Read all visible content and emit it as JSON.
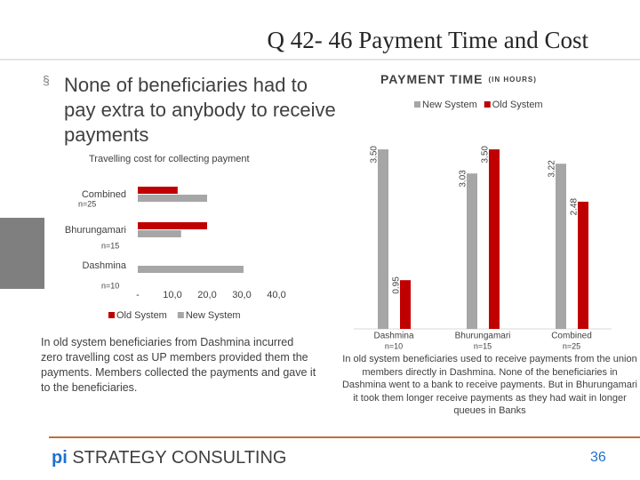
{
  "slide": {
    "title": "Q 42- 46 Payment Time and Cost",
    "bullet": "None of beneficiaries had to pay extra to anybody to receive payments",
    "left_note": "In old system beneficiaries from Dashmina incurred zero travelling cost as UP members provided them the payments. Members collected the payments and gave it to the beneficiaries.",
    "right_note": "In old system beneficiaries used to receive payments from the union members directly in Dashmina. None of the beneficiaries in Dashmina went to a bank to receive payments. But in Bhurungamari it took them longer receive payments as they had wait in longer queues in Banks",
    "footer_brand": "pi",
    "footer_company": "STRATEGY CONSULTING",
    "page_number": "36"
  },
  "chart_data": [
    {
      "type": "barh",
      "title": "Travelling cost for collecting payment",
      "categories": [
        "Combined",
        "Bhurungamari",
        "Dashmina"
      ],
      "category_notes": [
        "n=25",
        "n=15",
        "n=10"
      ],
      "series": [
        {
          "name": "Old System",
          "color": "#c00000",
          "values": [
            11.5,
            20,
            0
          ]
        },
        {
          "name": "New System",
          "color": "#a6a6a6",
          "values": [
            20,
            12.5,
            30.5
          ]
        }
      ],
      "xlim": [
        0,
        40
      ],
      "xticks": [
        {
          "value": 0,
          "label": "-"
        },
        {
          "value": 10,
          "label": "10,0"
        },
        {
          "value": 20,
          "label": "20,0"
        },
        {
          "value": 30,
          "label": "30,0"
        },
        {
          "value": 40,
          "label": "40,0"
        }
      ],
      "legend": "bottom"
    },
    {
      "type": "bar",
      "title": "PAYMENT TIME",
      "subtitle": "(IN HOURS)",
      "categories": [
        "Dashmina",
        "Bhurungamari",
        "Combined"
      ],
      "category_notes": [
        "n=10",
        "n=15",
        "n=25"
      ],
      "series": [
        {
          "name": "New System",
          "color": "#a6a6a6",
          "values": [
            3.5,
            3.03,
            3.22
          ],
          "value_labels": [
            "3.50",
            "3.03",
            "3.22"
          ]
        },
        {
          "name": "Old System",
          "color": "#c00000",
          "values": [
            0.95,
            3.5,
            2.48
          ],
          "value_labels": [
            "0.95",
            "3.50",
            "2.48"
          ]
        }
      ],
      "legend": "top"
    }
  ]
}
